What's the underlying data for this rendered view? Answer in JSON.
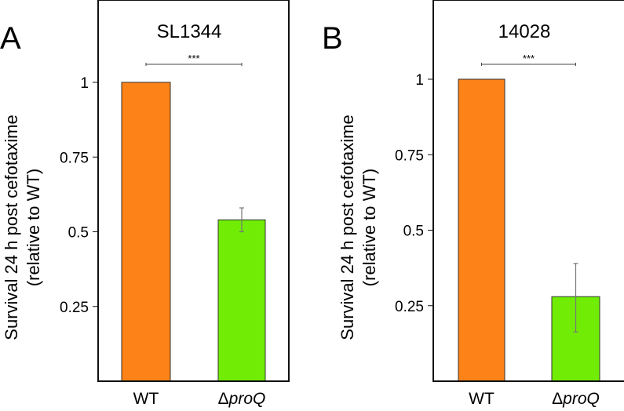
{
  "chart_data": [
    {
      "type": "bar",
      "panel_letter": "A",
      "title": "SL1344",
      "ylabel": [
        "Survival 24 h post cefotaxime",
        "(relative to WT)"
      ],
      "xlabel": "",
      "categories": [
        "WT",
        "proQ"
      ],
      "category_prefix": [
        "",
        "Δ"
      ],
      "values": [
        1.0,
        0.54
      ],
      "error_low": [
        1.0,
        0.5
      ],
      "error_high": [
        1.0,
        0.58
      ],
      "colors": [
        "#fd8217",
        "#70ec05"
      ],
      "yticks": [
        0.25,
        0.5,
        0.75,
        1
      ],
      "ytick_labels": [
        "0.25",
        "0.5",
        "0.75",
        "1"
      ],
      "ylim": [
        0,
        1.27
      ],
      "significance": {
        "label": "***",
        "between": [
          "WT",
          "proQ"
        ],
        "level": 1.1
      }
    },
    {
      "type": "bar",
      "panel_letter": "B",
      "title": "14028",
      "ylabel": [
        "Survival 24 h post cefotaxime",
        "(relative to WT)"
      ],
      "xlabel": "",
      "categories": [
        "WT",
        "proQ"
      ],
      "category_prefix": [
        "",
        "Δ"
      ],
      "values": [
        1.0,
        0.28
      ],
      "error_low": [
        1.0,
        0.163
      ],
      "error_high": [
        1.0,
        0.39
      ],
      "colors": [
        "#fd8217",
        "#70ec05"
      ],
      "yticks": [
        0.25,
        0.5,
        0.75,
        1
      ],
      "ytick_labels": [
        "0.25",
        "0.5",
        "0.75",
        "1"
      ],
      "ylim": [
        0,
        1.26
      ],
      "significance": {
        "label": "***",
        "between": [
          "WT",
          "proQ"
        ],
        "level": 1.1
      }
    }
  ]
}
